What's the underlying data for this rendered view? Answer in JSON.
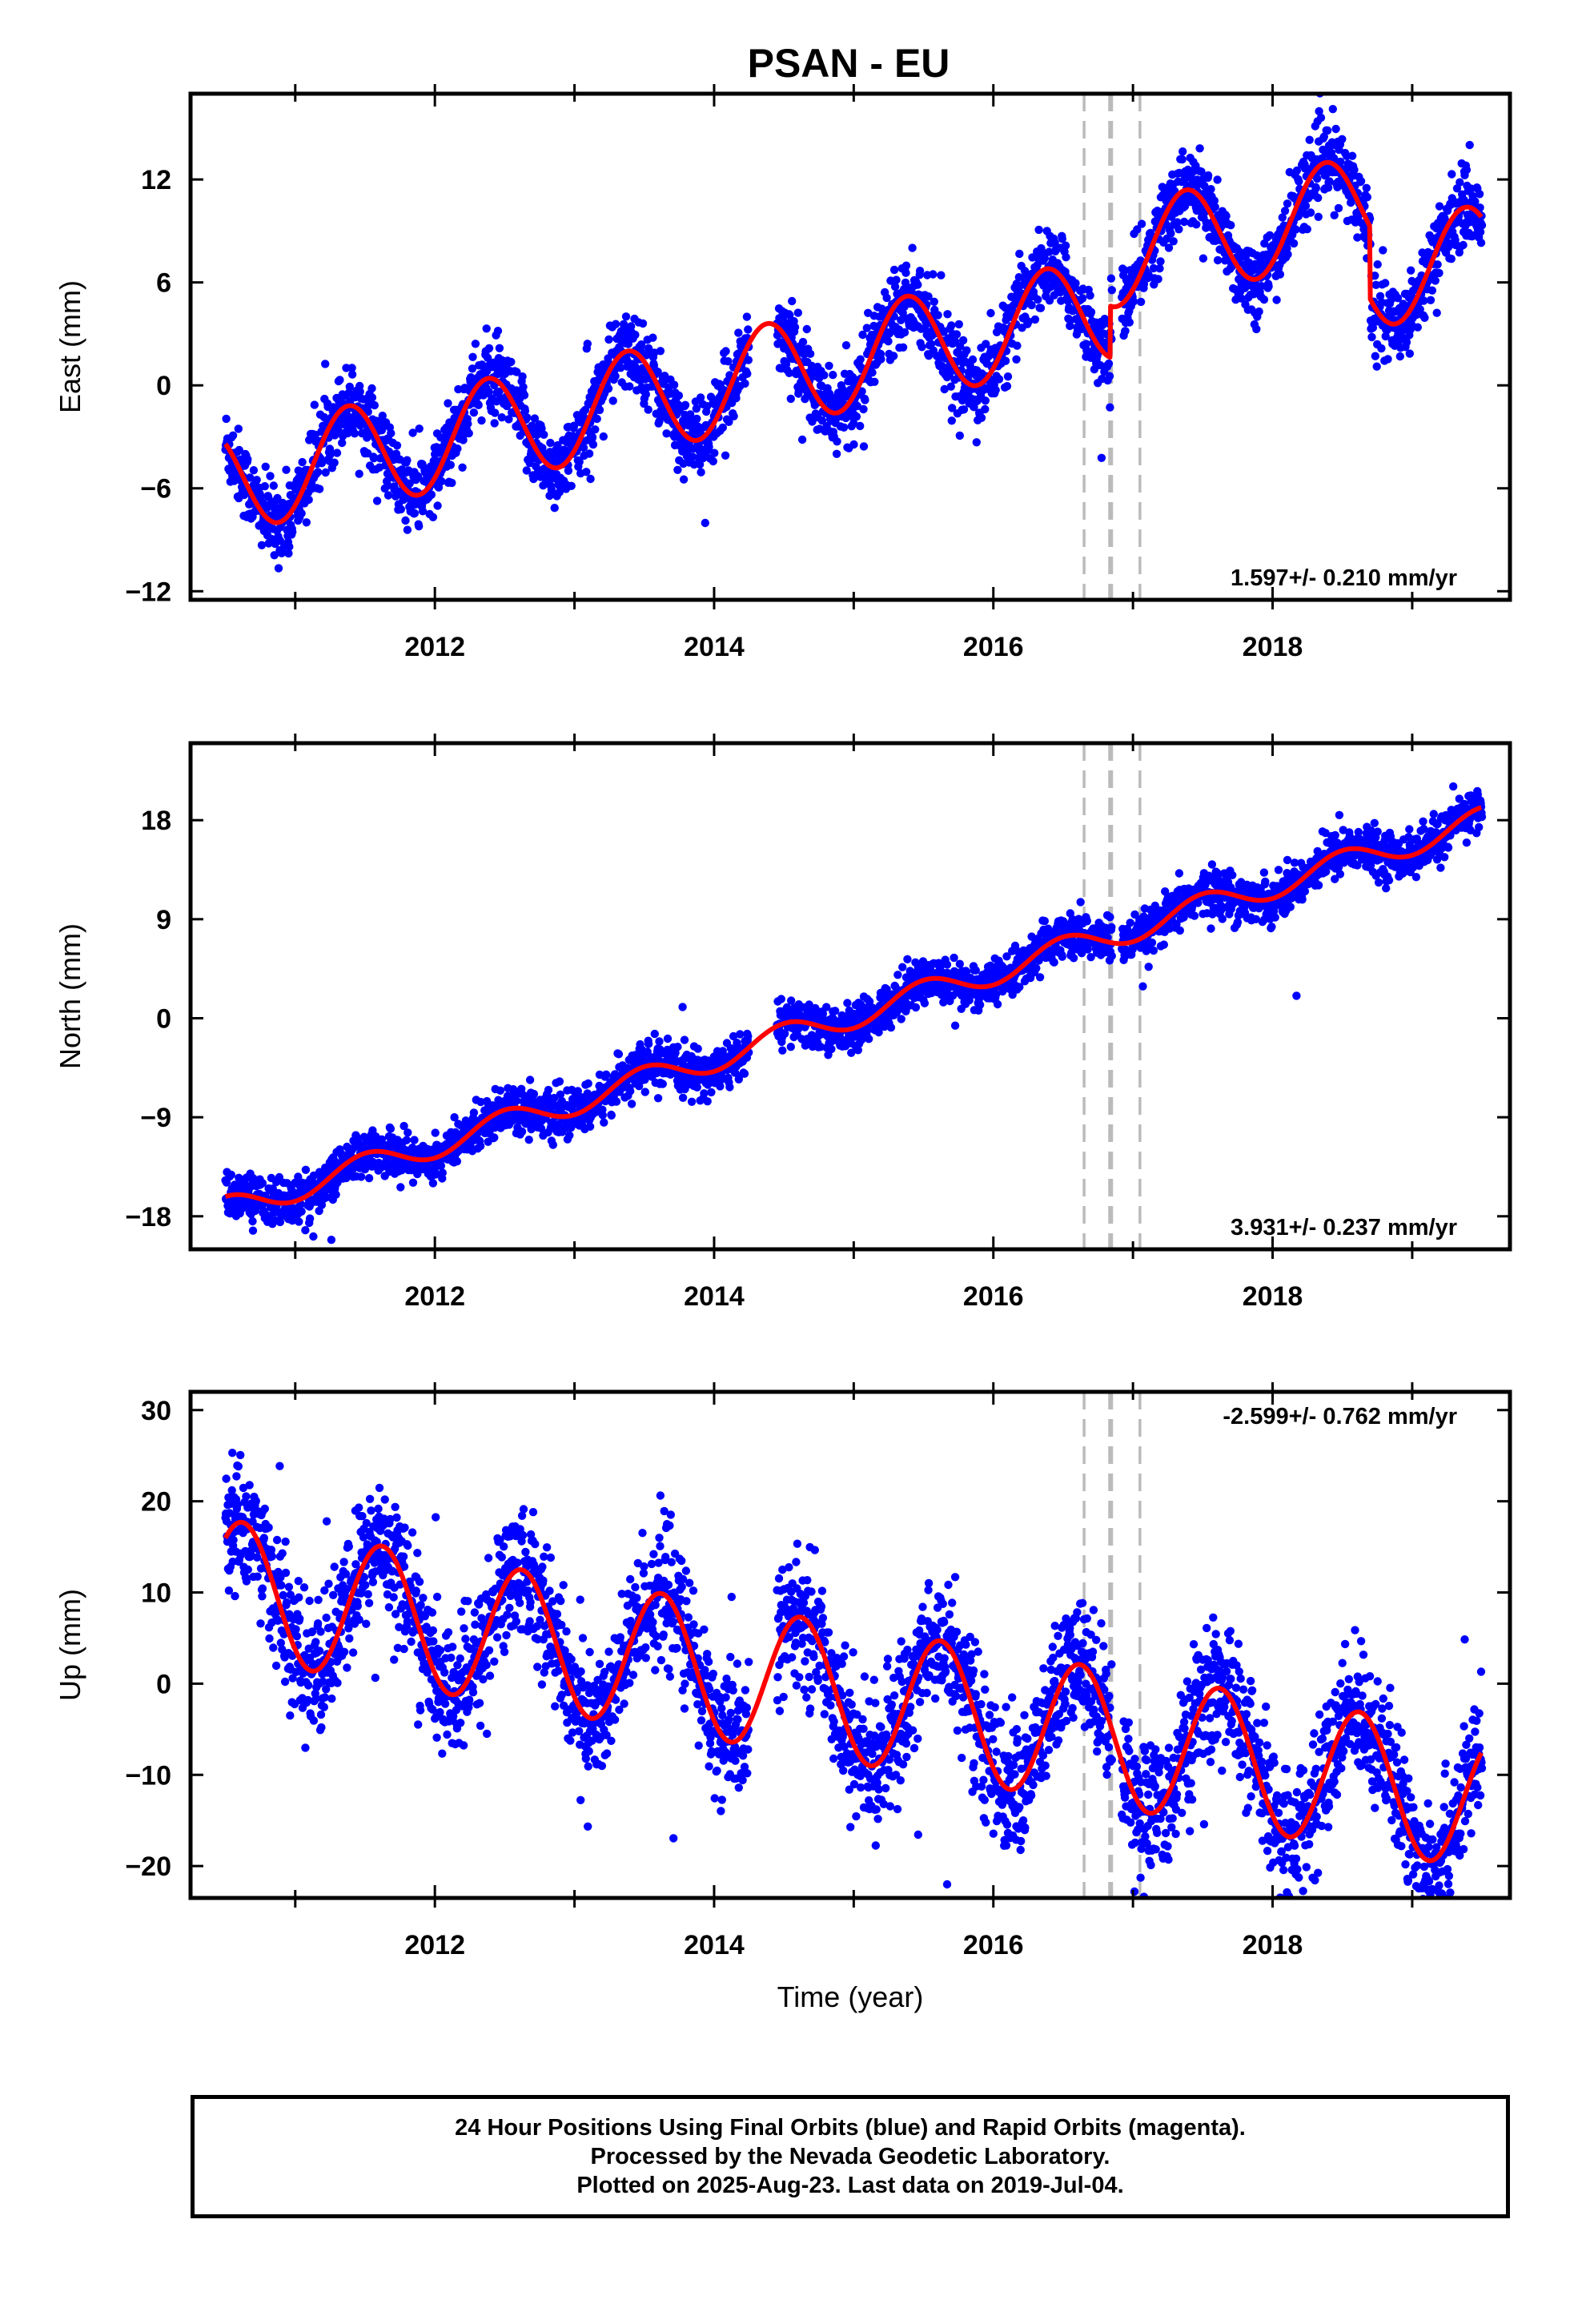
{
  "title": "PSAN - EU",
  "colors": {
    "final_points": "#0000ff",
    "model_curve": "#ff0000",
    "event_lines": "#bbbbbb",
    "frame": "#000000"
  },
  "footer": {
    "line1": "24 Hour Positions Using Final Orbits (blue) and Rapid Orbits (magenta).",
    "line2": "Processed by the Nevada Geodetic Laboratory.",
    "line3": "Plotted on 2025-Aug-23. Last data on 2019-Jul-04."
  },
  "chart_data": [
    {
      "type": "scatter",
      "component": "east",
      "ylabel": "East (mm)",
      "xlabel": "",
      "xlim": [
        2010.25,
        2019.7
      ],
      "ylim": [
        -12.5,
        17
      ],
      "xticks": [
        2012,
        2014,
        2016,
        2018
      ],
      "yticks": [
        -12,
        -6,
        0,
        6,
        12
      ],
      "grid": false,
      "rate_label": "1.597+/- 0.210 mm/yr",
      "rate_position": "bottom-right",
      "event_lines": [
        2016.65,
        2016.84,
        2017.05
      ],
      "model": {
        "rate": 1.597,
        "offset_at_2010_5": -5.6,
        "annual_amplitude": 3.0,
        "annual_peak": 0.38,
        "offsets": [
          {
            "epoch": 2016.84,
            "size": 3.0
          }
        ],
        "trend_breaks": [
          {
            "epoch": 2018.7,
            "size": -4.2
          }
        ]
      },
      "scatter_spread": 1.1,
      "data_start": 2010.5,
      "data_end": 2019.5,
      "series": [
        {
          "name": "Final Orbits (blue)",
          "role": "daily positions"
        },
        {
          "name": "model",
          "role": "fitted seasonal + trend curve"
        }
      ]
    },
    {
      "type": "scatter",
      "component": "north",
      "ylabel": "North (mm)",
      "xlabel": "",
      "xlim": [
        2010.25,
        2019.7
      ],
      "ylim": [
        -21,
        25
      ],
      "xticks": [
        2012,
        2014,
        2016,
        2018
      ],
      "yticks": [
        -18,
        -9,
        0,
        9,
        18
      ],
      "grid": false,
      "rate_label": "3.931+/- 0.237 mm/yr",
      "rate_position": "bottom-right",
      "event_lines": [
        2016.65,
        2016.84,
        2017.05
      ],
      "model": {
        "rate": 3.931,
        "offset_at_2010_5": -17.4,
        "annual_amplitude": 1.2,
        "annual_peak": 0.5,
        "offsets": [],
        "trend_breaks": []
      },
      "scatter_spread": 1.0,
      "data_start": 2010.5,
      "data_end": 2019.5,
      "series": [
        {
          "name": "Final Orbits (blue)",
          "role": "daily positions"
        },
        {
          "name": "model",
          "role": "fitted seasonal + trend curve"
        }
      ]
    },
    {
      "type": "scatter",
      "component": "up",
      "ylabel": "Up (mm)",
      "xlabel": "Time (year)",
      "xlim": [
        2010.25,
        2019.7
      ],
      "ylim": [
        -23.5,
        32
      ],
      "xticks": [
        2012,
        2014,
        2016,
        2018
      ],
      "yticks": [
        -20,
        -10,
        0,
        10,
        20,
        30
      ],
      "grid": false,
      "rate_label": "-2.599+/- 0.762 mm/yr",
      "rate_position": "top-right",
      "event_lines": [
        2016.65,
        2016.84,
        2017.05
      ],
      "model": {
        "rate": -2.599,
        "offset_at_2010_5": 10.5,
        "annual_amplitude": 7.5,
        "annual_peak": 0.62,
        "offsets": [],
        "trend_breaks": []
      },
      "scatter_spread": 3.6,
      "data_start": 2010.5,
      "data_end": 2019.5,
      "series": [
        {
          "name": "Final Orbits (blue)",
          "role": "daily positions"
        },
        {
          "name": "model",
          "role": "fitted seasonal + trend curve"
        }
      ]
    }
  ]
}
